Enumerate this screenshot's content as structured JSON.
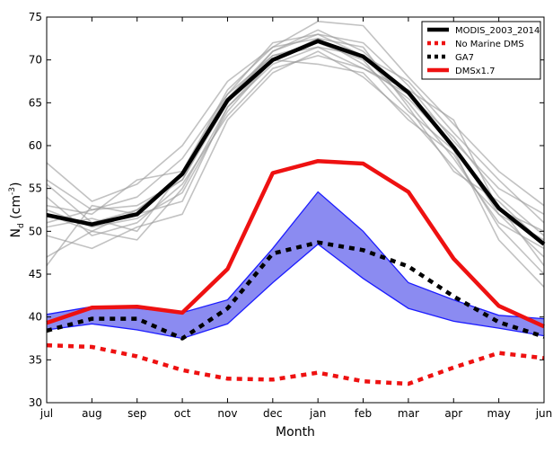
{
  "chart_data": {
    "type": "line",
    "xlabel": "Month",
    "ylabel": "N",
    "ylabel_sub": "d",
    "ylabel_unit": " (cm",
    "ylabel_exp": "-3",
    "ylabel_close": ")",
    "categories": [
      "jul",
      "aug",
      "sep",
      "oct",
      "nov",
      "dec",
      "jan",
      "feb",
      "mar",
      "apr",
      "may",
      "jun"
    ],
    "ylim": [
      30,
      75
    ],
    "yticks": [
      30,
      35,
      40,
      45,
      50,
      55,
      60,
      65,
      70,
      75
    ],
    "grid": false,
    "legend_position": "top-right",
    "yearly_lines": [
      [
        52.5,
        50.5,
        51.5,
        54.5,
        64.0,
        70.0,
        72.5,
        69.5,
        65.5,
        60.0,
        53.0,
        46.0
      ],
      [
        55.5,
        51.0,
        52.5,
        56.5,
        65.5,
        71.0,
        73.5,
        71.0,
        66.0,
        61.0,
        54.0,
        49.5
      ],
      [
        58.0,
        53.5,
        55.5,
        60.0,
        67.5,
        71.5,
        74.5,
        74.0,
        68.0,
        62.5,
        57.0,
        53.0
      ],
      [
        49.5,
        48.0,
        50.5,
        52.0,
        63.0,
        68.5,
        71.0,
        68.0,
        63.5,
        57.5,
        52.0,
        47.0
      ],
      [
        53.0,
        52.0,
        56.0,
        57.0,
        66.0,
        70.5,
        72.0,
        70.0,
        64.0,
        59.5,
        49.0,
        43.5
      ],
      [
        47.0,
        50.0,
        49.0,
        55.0,
        64.5,
        69.5,
        71.5,
        70.5,
        65.0,
        58.5,
        51.0,
        48.0
      ],
      [
        51.0,
        52.5,
        53.0,
        56.0,
        65.0,
        71.0,
        73.0,
        72.0,
        67.0,
        60.5,
        55.0,
        52.0
      ],
      [
        54.0,
        49.5,
        51.0,
        55.5,
        63.5,
        69.0,
        70.5,
        69.0,
        66.5,
        63.0,
        52.5,
        50.0
      ],
      [
        50.5,
        51.5,
        50.0,
        57.0,
        66.5,
        71.5,
        72.5,
        71.5,
        64.5,
        57.0,
        53.5,
        48.5
      ],
      [
        46.0,
        53.0,
        52.0,
        53.5,
        64.5,
        70.0,
        69.5,
        68.5,
        63.0,
        59.0,
        50.5,
        45.0
      ],
      [
        56.0,
        52.5,
        54.0,
        58.5,
        66.0,
        72.0,
        73.0,
        70.5,
        67.5,
        61.5,
        56.0,
        51.0
      ],
      [
        52.0,
        50.0,
        52.5,
        56.0,
        65.5,
        70.5,
        71.5,
        69.0,
        66.0,
        60.0,
        52.0,
        49.0
      ]
    ],
    "band": {
      "upper": [
        40.3,
        41.2,
        41.0,
        40.5,
        42.0,
        48.0,
        54.6,
        50.0,
        44.0,
        42.0,
        40.2,
        39.8
      ],
      "lower": [
        38.5,
        39.2,
        38.5,
        37.5,
        39.2,
        44.0,
        48.5,
        44.5,
        41.0,
        39.5,
        38.7,
        37.8
      ],
      "color": "#7777ee",
      "edge_color": "#1c1cff"
    },
    "series": [
      {
        "name": "MODIS_2003_2014",
        "values": [
          51.9,
          50.8,
          52.0,
          56.7,
          65.3,
          70.0,
          72.2,
          70.4,
          66.2,
          59.8,
          52.7,
          48.5
        ],
        "color": "#000000",
        "style": "solid"
      },
      {
        "name": "No Marine DMS",
        "values": [
          36.7,
          36.5,
          35.4,
          33.8,
          32.8,
          32.7,
          33.5,
          32.5,
          32.2,
          34.1,
          35.8,
          35.2
        ],
        "color": "#ee1111",
        "style": "dashed"
      },
      {
        "name": "GA7",
        "values": [
          38.4,
          39.8,
          39.8,
          37.5,
          41.0,
          47.4,
          48.7,
          47.8,
          45.9,
          42.4,
          39.4,
          37.7
        ],
        "color": "#000000",
        "style": "dashed"
      },
      {
        "name": "DMSx1.7",
        "values": [
          39.3,
          41.1,
          41.2,
          40.5,
          45.6,
          56.8,
          58.2,
          57.9,
          54.6,
          46.8,
          41.3,
          38.9
        ],
        "color": "#ee1111",
        "style": "solid"
      }
    ]
  }
}
